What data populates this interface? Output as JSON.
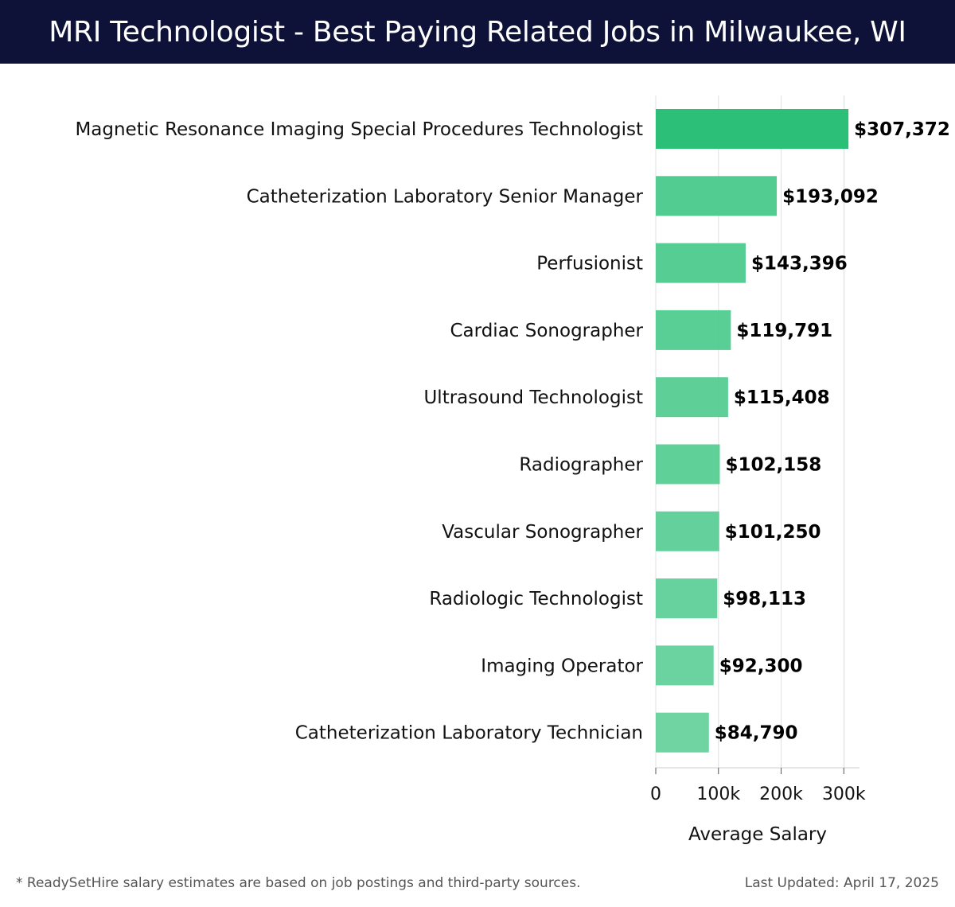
{
  "header": {
    "title": "MRI Technologist - Best Paying Related Jobs in Milwaukee, WI"
  },
  "chart_data": {
    "type": "bar",
    "orientation": "horizontal",
    "categories": [
      "Magnetic Resonance Imaging Special Procedures Technologist",
      "Catheterization Laboratory Senior Manager",
      "Perfusionist",
      "Cardiac Sonographer",
      "Ultrasound Technologist",
      "Radiographer",
      "Vascular Sonographer",
      "Radiologic Technologist",
      "Imaging Operator",
      "Catheterization Laboratory Technician"
    ],
    "values": [
      307372,
      193092,
      143396,
      119791,
      115408,
      102158,
      101250,
      98113,
      92300,
      84790
    ],
    "value_labels": [
      "$307,372",
      "$193,092",
      "$143,396",
      "$119,791",
      "$115,408",
      "$102,158",
      "$101,250",
      "$98,113",
      "$92,300",
      "$84,790"
    ],
    "xlabel": "Average Salary",
    "xlim": [
      0,
      320000
    ],
    "x_ticks": [
      0,
      100000,
      200000,
      300000
    ],
    "x_tick_labels": [
      "0",
      "100k",
      "200k",
      "300k"
    ],
    "grid": true,
    "colors": {
      "bar_top": "#2bbf77",
      "bar": "#4fcb8e",
      "header_bg": "#0f1238",
      "grid": "#e0e0e0"
    }
  },
  "footer": {
    "note": "* ReadySetHire salary estimates are based on job postings and third-party sources.",
    "updated": "Last Updated: April 17, 2025"
  }
}
